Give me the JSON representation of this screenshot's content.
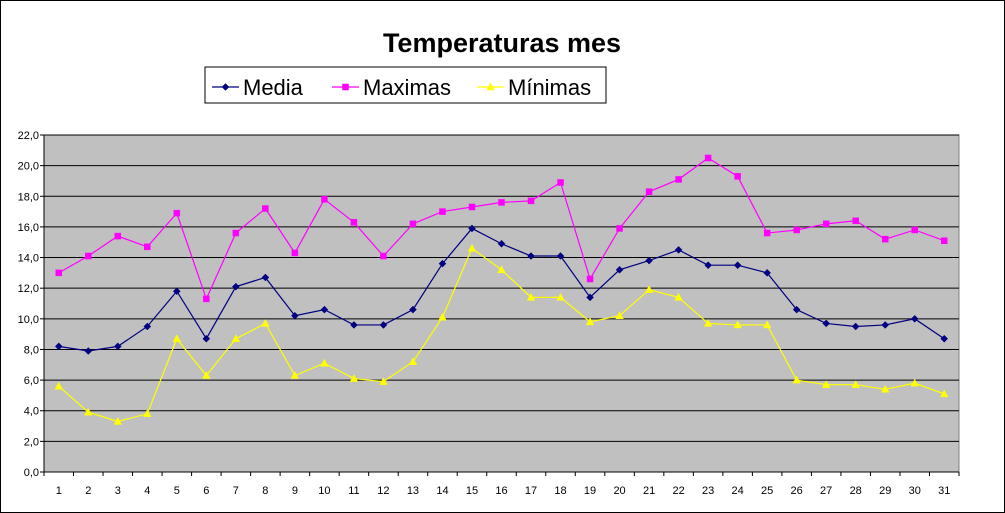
{
  "chart_data": {
    "type": "line",
    "title": "Temperaturas mes",
    "xlabel": "",
    "ylabel": "",
    "categories": [
      "1",
      "2",
      "3",
      "4",
      "5",
      "6",
      "7",
      "8",
      "9",
      "10",
      "11",
      "12",
      "13",
      "14",
      "15",
      "16",
      "17",
      "18",
      "19",
      "20",
      "21",
      "22",
      "23",
      "24",
      "25",
      "26",
      "27",
      "28",
      "29",
      "30",
      "31"
    ],
    "ylim": [
      0,
      22
    ],
    "yticks": [
      "0,0",
      "2,0",
      "4,0",
      "6,0",
      "8,0",
      "10,0",
      "12,0",
      "14,0",
      "16,0",
      "18,0",
      "20,0",
      "22,0"
    ],
    "grid": "horizontal",
    "plot_background": "#C0C0C0",
    "legend_position": "top",
    "series": [
      {
        "name": "Media",
        "color": "#000080",
        "marker": "diamond",
        "values": [
          8.2,
          7.9,
          8.2,
          9.5,
          11.8,
          8.7,
          12.1,
          12.7,
          10.2,
          10.6,
          9.6,
          9.6,
          10.6,
          13.6,
          15.9,
          14.9,
          14.1,
          14.1,
          11.4,
          13.2,
          13.8,
          14.5,
          13.5,
          13.5,
          13.0,
          10.6,
          9.7,
          9.5,
          9.6,
          10.0,
          8.7
        ]
      },
      {
        "name": "Maximas",
        "color": "#FF00FF",
        "marker": "square",
        "values": [
          13.0,
          14.1,
          15.4,
          14.7,
          16.9,
          11.3,
          15.6,
          17.2,
          14.3,
          17.8,
          16.3,
          14.1,
          16.2,
          17.0,
          17.3,
          17.6,
          17.7,
          18.9,
          12.6,
          15.9,
          18.3,
          19.1,
          20.5,
          19.3,
          15.6,
          15.8,
          16.2,
          16.4,
          15.2,
          15.8,
          15.1
        ]
      },
      {
        "name": "Mínimas",
        "color": "#FFFF00",
        "marker": "triangle",
        "values": [
          5.6,
          3.9,
          3.3,
          3.8,
          8.7,
          6.3,
          8.7,
          9.7,
          6.3,
          7.1,
          6.1,
          5.9,
          7.2,
          10.1,
          14.6,
          13.2,
          11.4,
          11.4,
          9.8,
          10.2,
          11.9,
          11.4,
          9.7,
          9.6,
          9.6,
          6.0,
          5.7,
          5.7,
          5.4,
          5.8,
          5.1
        ]
      }
    ]
  }
}
